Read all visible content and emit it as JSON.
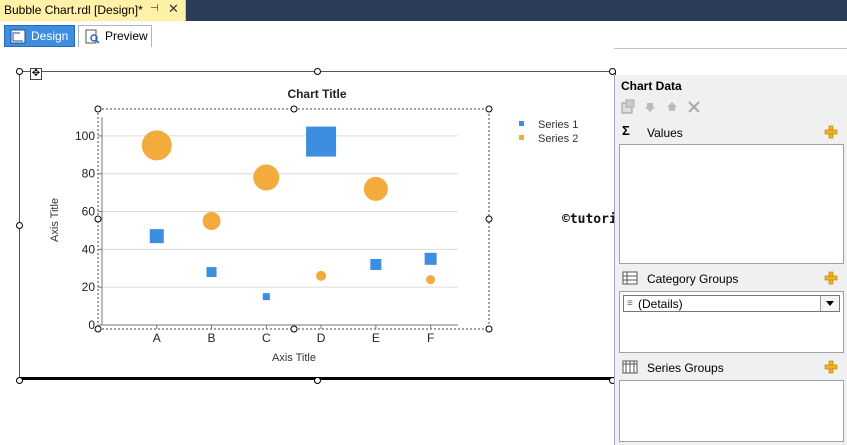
{
  "document_tab": {
    "title": "Bubble Chart.rdl [Design]*",
    "pin_glyph": "⊣",
    "close_glyph": "✕"
  },
  "view_tabs": [
    {
      "label": "Design",
      "icon": "ruler-design-icon",
      "active": true
    },
    {
      "label": "Preview",
      "icon": "preview-page-icon",
      "active": false
    }
  ],
  "chart_data": {
    "type": "scatter",
    "variant": "bubble",
    "title": "Chart Title",
    "xlabel": "Axis Title",
    "ylabel": "Axis Title",
    "categories": [
      "A",
      "B",
      "C",
      "D",
      "E",
      "F"
    ],
    "yticks": [
      0,
      20,
      40,
      60,
      80,
      100
    ],
    "ylim": [
      0,
      110
    ],
    "grid": true,
    "legend_position": "top-right",
    "series": [
      {
        "name": "Series 1",
        "marker": "square",
        "color": "#3d8ee0",
        "y": [
          47,
          28,
          15,
          97,
          32,
          35
        ],
        "size": [
          14,
          10,
          7,
          30,
          11,
          12
        ]
      },
      {
        "name": "Series 2",
        "marker": "circle",
        "color": "#f2ab3c",
        "y": [
          95,
          55,
          78,
          26,
          72,
          24
        ],
        "size": [
          30,
          18,
          26,
          10,
          24,
          9
        ]
      }
    ]
  },
  "watermark": "©tutorialgateway.org",
  "panel": {
    "title": "Chart Data",
    "toolbar": [
      "properties-icon",
      "move-down-icon",
      "move-up-icon",
      "delete-icon"
    ],
    "values_label": "Values",
    "category_groups_label": "Category Groups",
    "category_group_item": "(Details)",
    "series_groups_label": "Series Groups"
  },
  "colors": {
    "series1": "#3d8ee0",
    "series2": "#f2ab3c",
    "tab_active": "#fff1a8",
    "tab_strip": "#2b3c59"
  }
}
